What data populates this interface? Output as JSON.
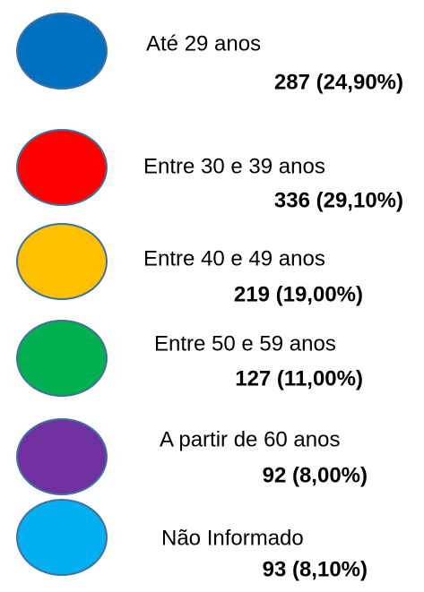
{
  "items": [
    {
      "label": "Até 29 anos",
      "value": "287 (24,90%)",
      "color": "#0070c0"
    },
    {
      "label": "Entre 30 e 39 anos",
      "value": "336 (29,10%)",
      "color": "#ff0000"
    },
    {
      "label": "Entre 40 e 49 anos",
      "value": "219 (19,00%)",
      "color": "#ffc000"
    },
    {
      "label": "Entre 50 e 59 anos",
      "value": "127 (11,00%)",
      "color": "#00b050"
    },
    {
      "label": "A partir de 60 anos",
      "value": "92 (8,00%)",
      "color": "#7030a0"
    },
    {
      "label": "Não Informado",
      "value": "93 (8,10%)",
      "color": "#00b0f0"
    }
  ]
}
